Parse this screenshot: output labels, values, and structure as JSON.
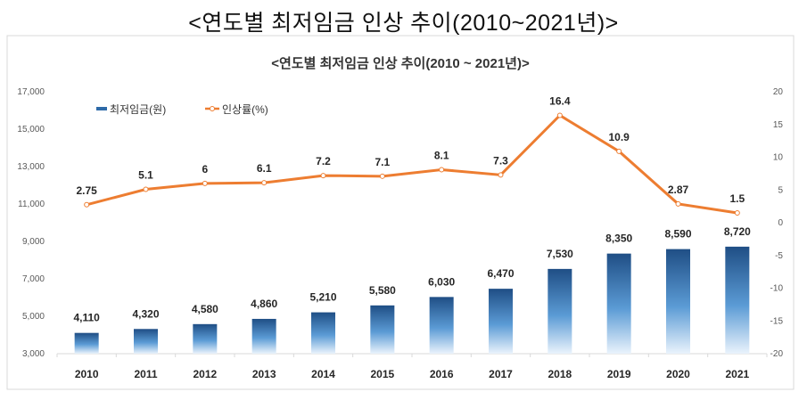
{
  "page_title": "<연도별 최저임금 인상 추이(2010~2021년)>",
  "chart_data": {
    "type": "bar+line",
    "title": "<연도별 최저임금 인상 추이(2010 ~ 2021년)>",
    "categories": [
      "2010",
      "2011",
      "2012",
      "2013",
      "2014",
      "2015",
      "2016",
      "2017",
      "2018",
      "2019",
      "2020",
      "2021"
    ],
    "series": [
      {
        "name": "최저임금(원)",
        "type": "bar",
        "axis": "left",
        "color": "#2e6aa8",
        "values": [
          4110,
          4320,
          4580,
          4860,
          5210,
          5580,
          6030,
          6470,
          7530,
          8350,
          8590,
          8720
        ],
        "labels": [
          "4,110",
          "4,320",
          "4,580",
          "4,860",
          "5,210",
          "5,580",
          "6,030",
          "6,470",
          "7,530",
          "8,350",
          "8,590",
          "8,720"
        ]
      },
      {
        "name": "인상률(%)",
        "type": "line",
        "axis": "right",
        "color": "#ed7d31",
        "values": [
          2.75,
          5.1,
          6,
          6.1,
          7.2,
          7.1,
          8.1,
          7.3,
          16.4,
          10.9,
          2.87,
          1.5
        ],
        "labels": [
          "2.75",
          "5.1",
          "6",
          "6.1",
          "7.2",
          "7.1",
          "8.1",
          "7.3",
          "16.4",
          "10.9",
          "2.87",
          "1.5"
        ]
      }
    ],
    "left_axis": {
      "ylim": [
        3000,
        17000
      ],
      "ticks": [
        "3,000",
        "5,000",
        "7,000",
        "9,000",
        "11,000",
        "13,000",
        "15,000",
        "17,000"
      ]
    },
    "right_axis": {
      "ylim": [
        -20,
        20
      ],
      "ticks": [
        "-20",
        "-15",
        "-10",
        "-5",
        "0",
        "5",
        "10",
        "15",
        "20"
      ]
    },
    "grid": false,
    "legend": "top-left"
  }
}
